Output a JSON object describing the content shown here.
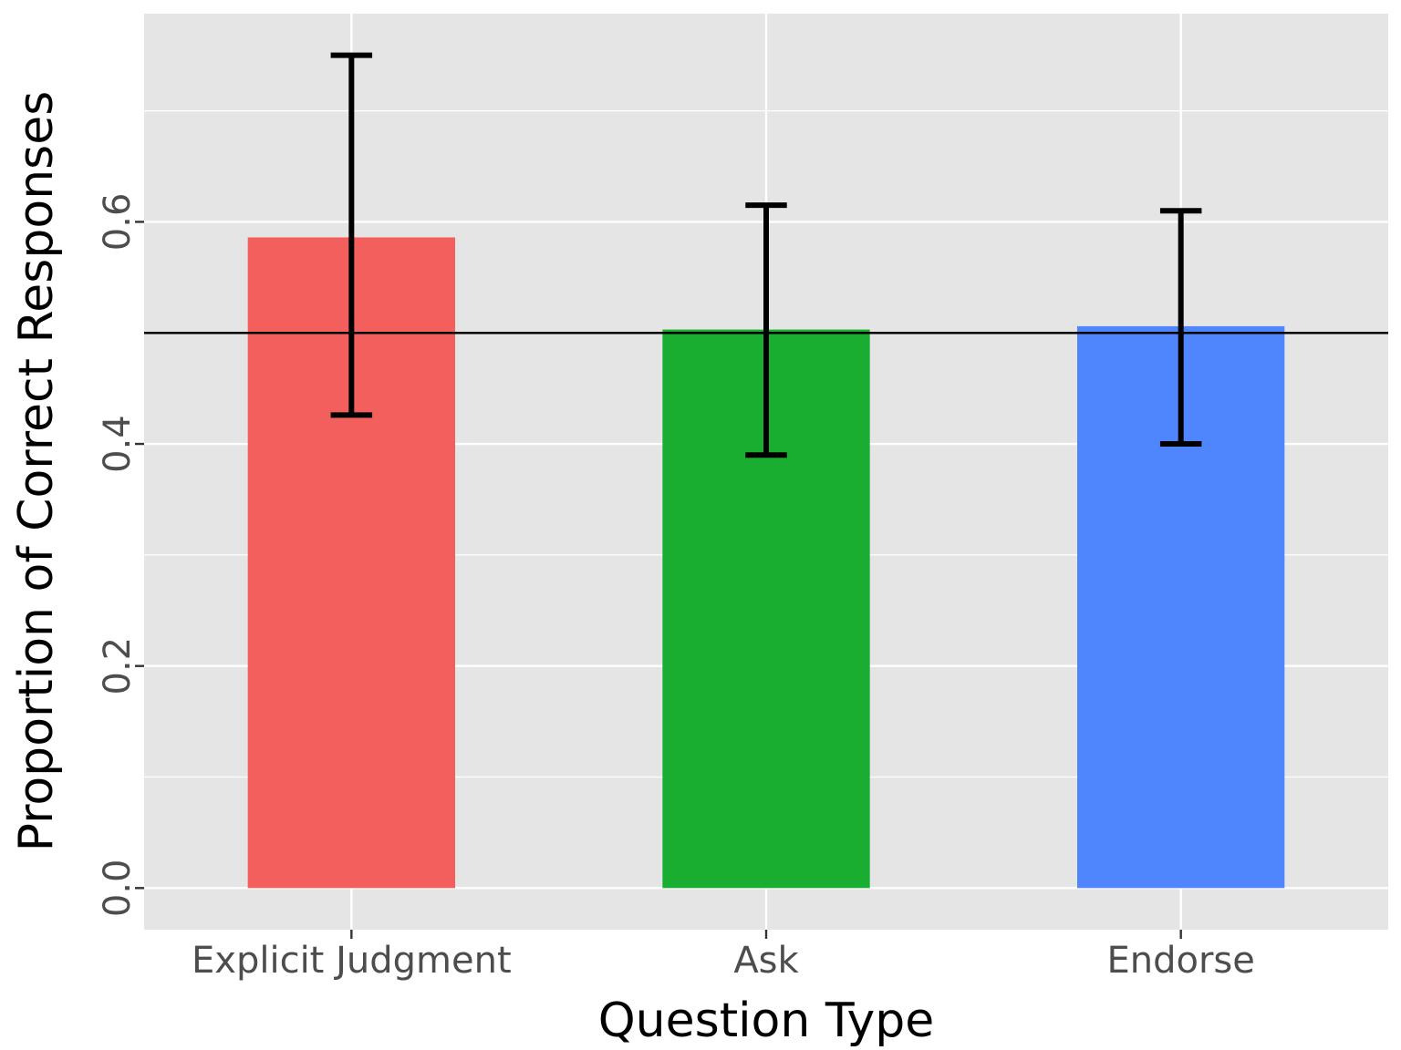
{
  "chart_data": {
    "type": "bar",
    "title": "",
    "xlabel": "Question Type",
    "ylabel": "Proportion of Correct Responses",
    "categories": [
      "Explicit Judgment",
      "Ask",
      "Endorse"
    ],
    "values": [
      0.586,
      0.503,
      0.506
    ],
    "error_bars": {
      "lower": [
        0.426,
        0.39,
        0.4
      ],
      "upper": [
        0.75,
        0.615,
        0.61
      ]
    },
    "colors": [
      "#F35F5C",
      "#19AE2F",
      "#4F86FD"
    ],
    "reference_line": 0.5,
    "ylim": [
      -0.0375,
      0.7875
    ],
    "yticks": [
      0.0,
      0.2,
      0.4,
      0.6
    ],
    "ytick_labels": [
      "0.0",
      "0.2",
      "0.4",
      "0.6"
    ],
    "grid": true,
    "legend": "none",
    "panel_background": "#E5E5E5"
  }
}
